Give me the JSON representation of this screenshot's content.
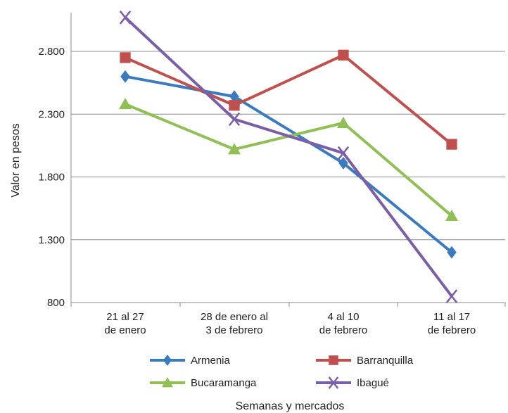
{
  "chart_data": {
    "type": "line",
    "categories": [
      [
        "21 al 27",
        "de enero"
      ],
      [
        "28 de enero al",
        "3 de febrero"
      ],
      [
        "4 al 10",
        "de febrero"
      ],
      [
        "11 al 17",
        "de febrero"
      ]
    ],
    "yticks": [
      "800",
      "1.300",
      "1.800",
      "2.300",
      "2.800"
    ],
    "ytick_values": [
      800,
      1300,
      1800,
      2300,
      2800
    ],
    "ylim": [
      800,
      3100
    ],
    "xlabel": "Semanas y mercados",
    "ylabel": "Valor en pesos",
    "grid": true,
    "legend_position": "bottom",
    "series": [
      {
        "name": "Armenia",
        "values": [
          2600,
          2440,
          1910,
          1200
        ],
        "color": "#3a7bbf",
        "marker": "diamond"
      },
      {
        "name": "Barranquilla",
        "values": [
          2750,
          2370,
          2770,
          2060
        ],
        "color": "#c0504d",
        "marker": "square"
      },
      {
        "name": "Bucaramanga",
        "values": [
          2380,
          2020,
          2230,
          1490
        ],
        "color": "#8fbf55",
        "marker": "triangle"
      },
      {
        "name": "Ibagué",
        "values": [
          3070,
          2260,
          1990,
          850
        ],
        "color": "#7a5ea8",
        "marker": "x"
      }
    ]
  }
}
